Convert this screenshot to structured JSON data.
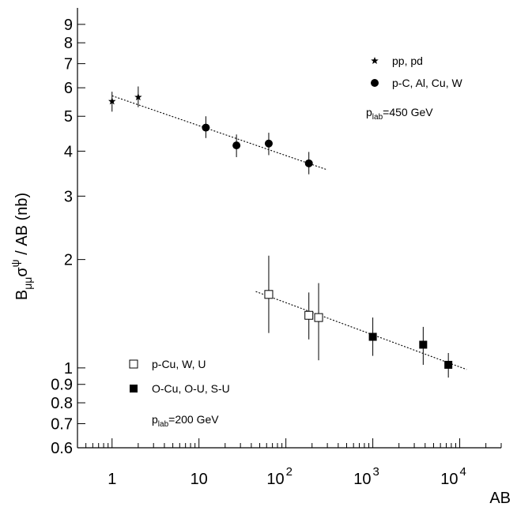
{
  "chart_data": {
    "type": "scatter",
    "x_scale": "log",
    "y_scale": "log",
    "xlim": [
      0.4,
      30000
    ],
    "ylim": [
      0.6,
      10
    ],
    "xlabel": "AB",
    "ylabel": "B_{μμ}σ^{ψ} / AB (nb)",
    "ylabel_parts": {
      "main": "B",
      "sub": "μμ",
      "sigma": "σ",
      "sup": "ψ",
      "rest": " / AB (nb)"
    },
    "x_ticks": [
      {
        "value": 1,
        "label": "1"
      },
      {
        "value": 10,
        "label": "10"
      },
      {
        "value": 100,
        "base": "10",
        "exp": "2"
      },
      {
        "value": 1000,
        "base": "10",
        "exp": "3"
      },
      {
        "value": 10000,
        "base": "10",
        "exp": "4"
      }
    ],
    "y_ticks": [
      {
        "value": 0.6,
        "label": "0.6"
      },
      {
        "value": 0.7,
        "label": "0.7"
      },
      {
        "value": 0.8,
        "label": "0.8"
      },
      {
        "value": 0.9,
        "label": "0.9"
      },
      {
        "value": 1,
        "label": "1"
      },
      {
        "value": 2,
        "label": "2"
      },
      {
        "value": 3,
        "label": "3"
      },
      {
        "value": 4,
        "label": "4"
      },
      {
        "value": 5,
        "label": "5"
      },
      {
        "value": 6,
        "label": "6"
      },
      {
        "value": 7,
        "label": "7"
      },
      {
        "value": 8,
        "label": "8"
      },
      {
        "value": 9,
        "label": "9"
      }
    ],
    "series": [
      {
        "name": "pp, pd",
        "marker": "star",
        "points": [
          {
            "x": 1,
            "y": 5.5,
            "lo": 5.15,
            "hi": 5.85
          },
          {
            "x": 2,
            "y": 5.65,
            "lo": 5.3,
            "hi": 6.05
          }
        ]
      },
      {
        "name": "p-C, Al, Cu, W",
        "marker": "circle",
        "points": [
          {
            "x": 12,
            "y": 4.65,
            "lo": 4.35,
            "hi": 5.0
          },
          {
            "x": 27,
            "y": 4.15,
            "lo": 3.85,
            "hi": 4.45
          },
          {
            "x": 63.5,
            "y": 4.2,
            "lo": 3.9,
            "hi": 4.5
          },
          {
            "x": 183.8,
            "y": 3.7,
            "lo": 3.45,
            "hi": 3.98
          }
        ]
      },
      {
        "name": "p-Cu, W, U",
        "marker": "open-square",
        "points": [
          {
            "x": 63.5,
            "y": 1.6,
            "lo": 1.25,
            "hi": 2.05
          },
          {
            "x": 183.8,
            "y": 1.4,
            "lo": 1.2,
            "hi": 1.62
          },
          {
            "x": 238,
            "y": 1.38,
            "lo": 1.05,
            "hi": 1.72
          }
        ]
      },
      {
        "name": "O-Cu, O-U, S-U",
        "marker": "filled-square",
        "points": [
          {
            "x": 1000,
            "y": 1.22,
            "lo": 1.08,
            "hi": 1.38
          },
          {
            "x": 3800,
            "y": 1.16,
            "lo": 1.02,
            "hi": 1.3
          },
          {
            "x": 7400,
            "y": 1.02,
            "lo": 0.94,
            "hi": 1.1
          }
        ]
      }
    ],
    "fit_lines": [
      {
        "from": [
          1,
          5.7
        ],
        "to": [
          300,
          3.55
        ]
      },
      {
        "from": [
          45,
          1.63
        ],
        "to": [
          12000,
          0.99
        ]
      }
    ],
    "annotations": {
      "top": {
        "main": "p",
        "sub": "lab",
        "rest": "=450 GeV"
      },
      "bottom": {
        "main": "p",
        "sub": "lab",
        "rest": "=200 GeV"
      }
    }
  }
}
